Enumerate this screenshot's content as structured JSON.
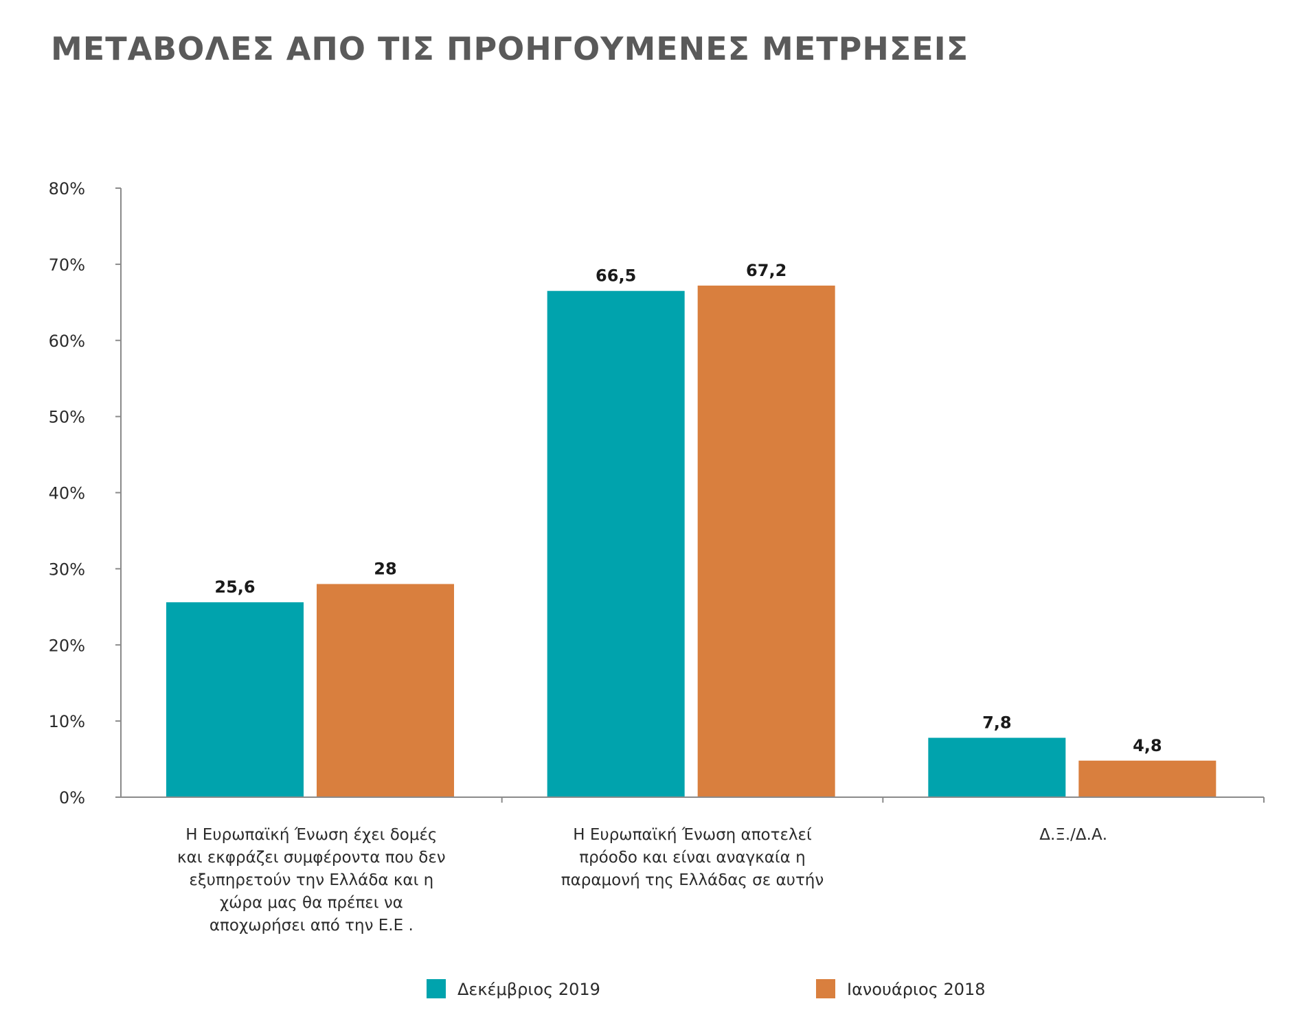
{
  "title": "ΜΕΤΑΒΟΛΕΣ ΑΠΟ ΤΙΣ ΠΡΟΗΓΟΥΜΕΝΕΣ ΜΕΤΡΗΣΕΙΣ",
  "colors": {
    "series_1": "#00A3AD",
    "series_2": "#D97F3E",
    "axis": "#8a8a8a"
  },
  "chart_data": {
    "type": "bar",
    "title": "ΜΕΤΑΒΟΛΕΣ ΑΠΟ ΤΙΣ ΠΡΟΗΓΟΥΜΕΝΕΣ ΜΕΤΡΗΣΕΙΣ",
    "categories": [
      "Η Ευρωπαϊκή Ένωση έχει δομές και εκφράζει συμφέροντα που δεν εξυπηρετούν την Ελλάδα και η χώρα μας θα πρέπει να αποχωρήσει από την Ε.Ε .",
      "Η Ευρωπαϊκή Ένωση αποτελεί πρόοδο και είναι αναγκαία η παραμονή της Ελλάδας σε αυτήν",
      "Δ.Ξ./Δ.Α."
    ],
    "category_label_lines": [
      [
        "Η Ευρωπαϊκή Ένωση έχει δομές",
        "και εκφράζει συμφέροντα που δεν",
        "εξυπηρετούν την Ελλάδα και η",
        "χώρα μας θα πρέπει να",
        "αποχωρήσει από την Ε.Ε ."
      ],
      [
        "Η Ευρωπαϊκή Ένωση αποτελεί",
        "πρόοδο και είναι αναγκαία η",
        "παραμονή της Ελλάδας σε αυτήν"
      ],
      [
        "Δ.Ξ./Δ.Α."
      ]
    ],
    "series": [
      {
        "name": "Δεκέμβριος 2019",
        "values": [
          25.6,
          66.5,
          7.8
        ],
        "labels": [
          "25,6",
          "66,5",
          "7,8"
        ],
        "color": "#00A3AD"
      },
      {
        "name": "Ιανουάριος 2018",
        "values": [
          28,
          67.2,
          4.8
        ],
        "labels": [
          "28",
          "67,2",
          "4,8"
        ],
        "color": "#D97F3E"
      }
    ],
    "ylim": [
      0,
      80
    ],
    "yticks": [
      0,
      10,
      20,
      30,
      40,
      50,
      60,
      70,
      80
    ],
    "ytick_labels": [
      "0%",
      "10%",
      "20%",
      "30%",
      "40%",
      "50%",
      "60%",
      "70%",
      "80%"
    ],
    "xlabel": "",
    "ylabel": "",
    "grid": false,
    "legend_position": "bottom"
  }
}
